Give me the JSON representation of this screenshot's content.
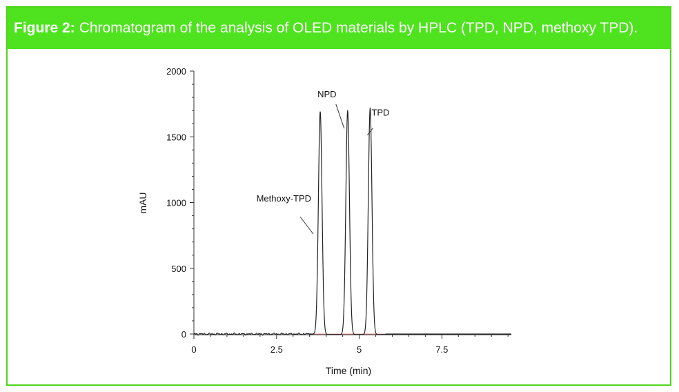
{
  "figure": {
    "label": "Figure 2:",
    "caption": "Chromatogram of the analysis of OLED materials by HPLC (TPD, NPD, methoxy TPD)."
  },
  "colors": {
    "header_bg": "#4ee31e",
    "frame_border": "#4ed61a",
    "trace": "#222222",
    "baseline": "#e06060"
  },
  "chart_data": {
    "type": "line",
    "title": "",
    "xlabel": "Time (min)",
    "ylabel": "mAU",
    "xlim": [
      0,
      9.6
    ],
    "ylim": [
      0,
      2000
    ],
    "x_ticks": [
      0,
      2.5,
      5,
      7.5
    ],
    "x_tick_labels": [
      "0",
      "2.5",
      "5",
      "7.5"
    ],
    "y_ticks": [
      0,
      500,
      1000,
      1500,
      2000
    ],
    "y_tick_labels": [
      "0",
      "500",
      "1000",
      "1500",
      "2000"
    ],
    "grid": false,
    "peaks": [
      {
        "name": "Methoxy-TPD",
        "retention_time": 3.82,
        "height": 1690
      },
      {
        "name": "NPD",
        "retention_time": 4.65,
        "height": 1700
      },
      {
        "name": "TPD",
        "retention_time": 5.33,
        "height": 1720
      }
    ],
    "annotations": [
      "Methoxy-TPD",
      "NPD",
      "TPD"
    ]
  }
}
